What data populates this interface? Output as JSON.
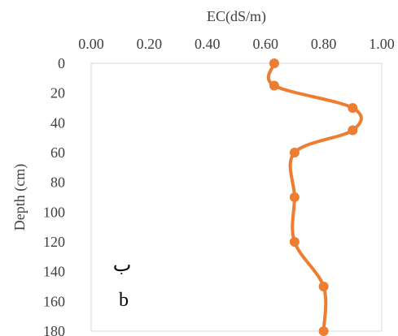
{
  "chart_data": {
    "type": "line",
    "xlabel": "EC(dS/m)",
    "ylabel": "Depth (cm)",
    "xlim": [
      0,
      1
    ],
    "ylim": [
      0,
      180
    ],
    "x_axis_position": "top",
    "y_axis_inverted": true,
    "grid": false,
    "x_ticks": [
      "0.00",
      "0.20",
      "0.40",
      "0.60",
      "0.80",
      "1.00"
    ],
    "y_ticks": [
      "0",
      "20",
      "40",
      "60",
      "80",
      "100",
      "120",
      "140",
      "160",
      "180"
    ],
    "series": [
      {
        "color": "#ED7D31",
        "smooth": true,
        "markers": true,
        "points": [
          {
            "x": 0.63,
            "y": 0
          },
          {
            "x": 0.63,
            "y": 15
          },
          {
            "x": 0.9,
            "y": 30
          },
          {
            "x": 0.9,
            "y": 45
          },
          {
            "x": 0.7,
            "y": 60
          },
          {
            "x": 0.7,
            "y": 90
          },
          {
            "x": 0.7,
            "y": 120
          },
          {
            "x": 0.8,
            "y": 150
          },
          {
            "x": 0.8,
            "y": 180
          }
        ]
      }
    ],
    "annotations": [
      "ب",
      "b"
    ]
  }
}
